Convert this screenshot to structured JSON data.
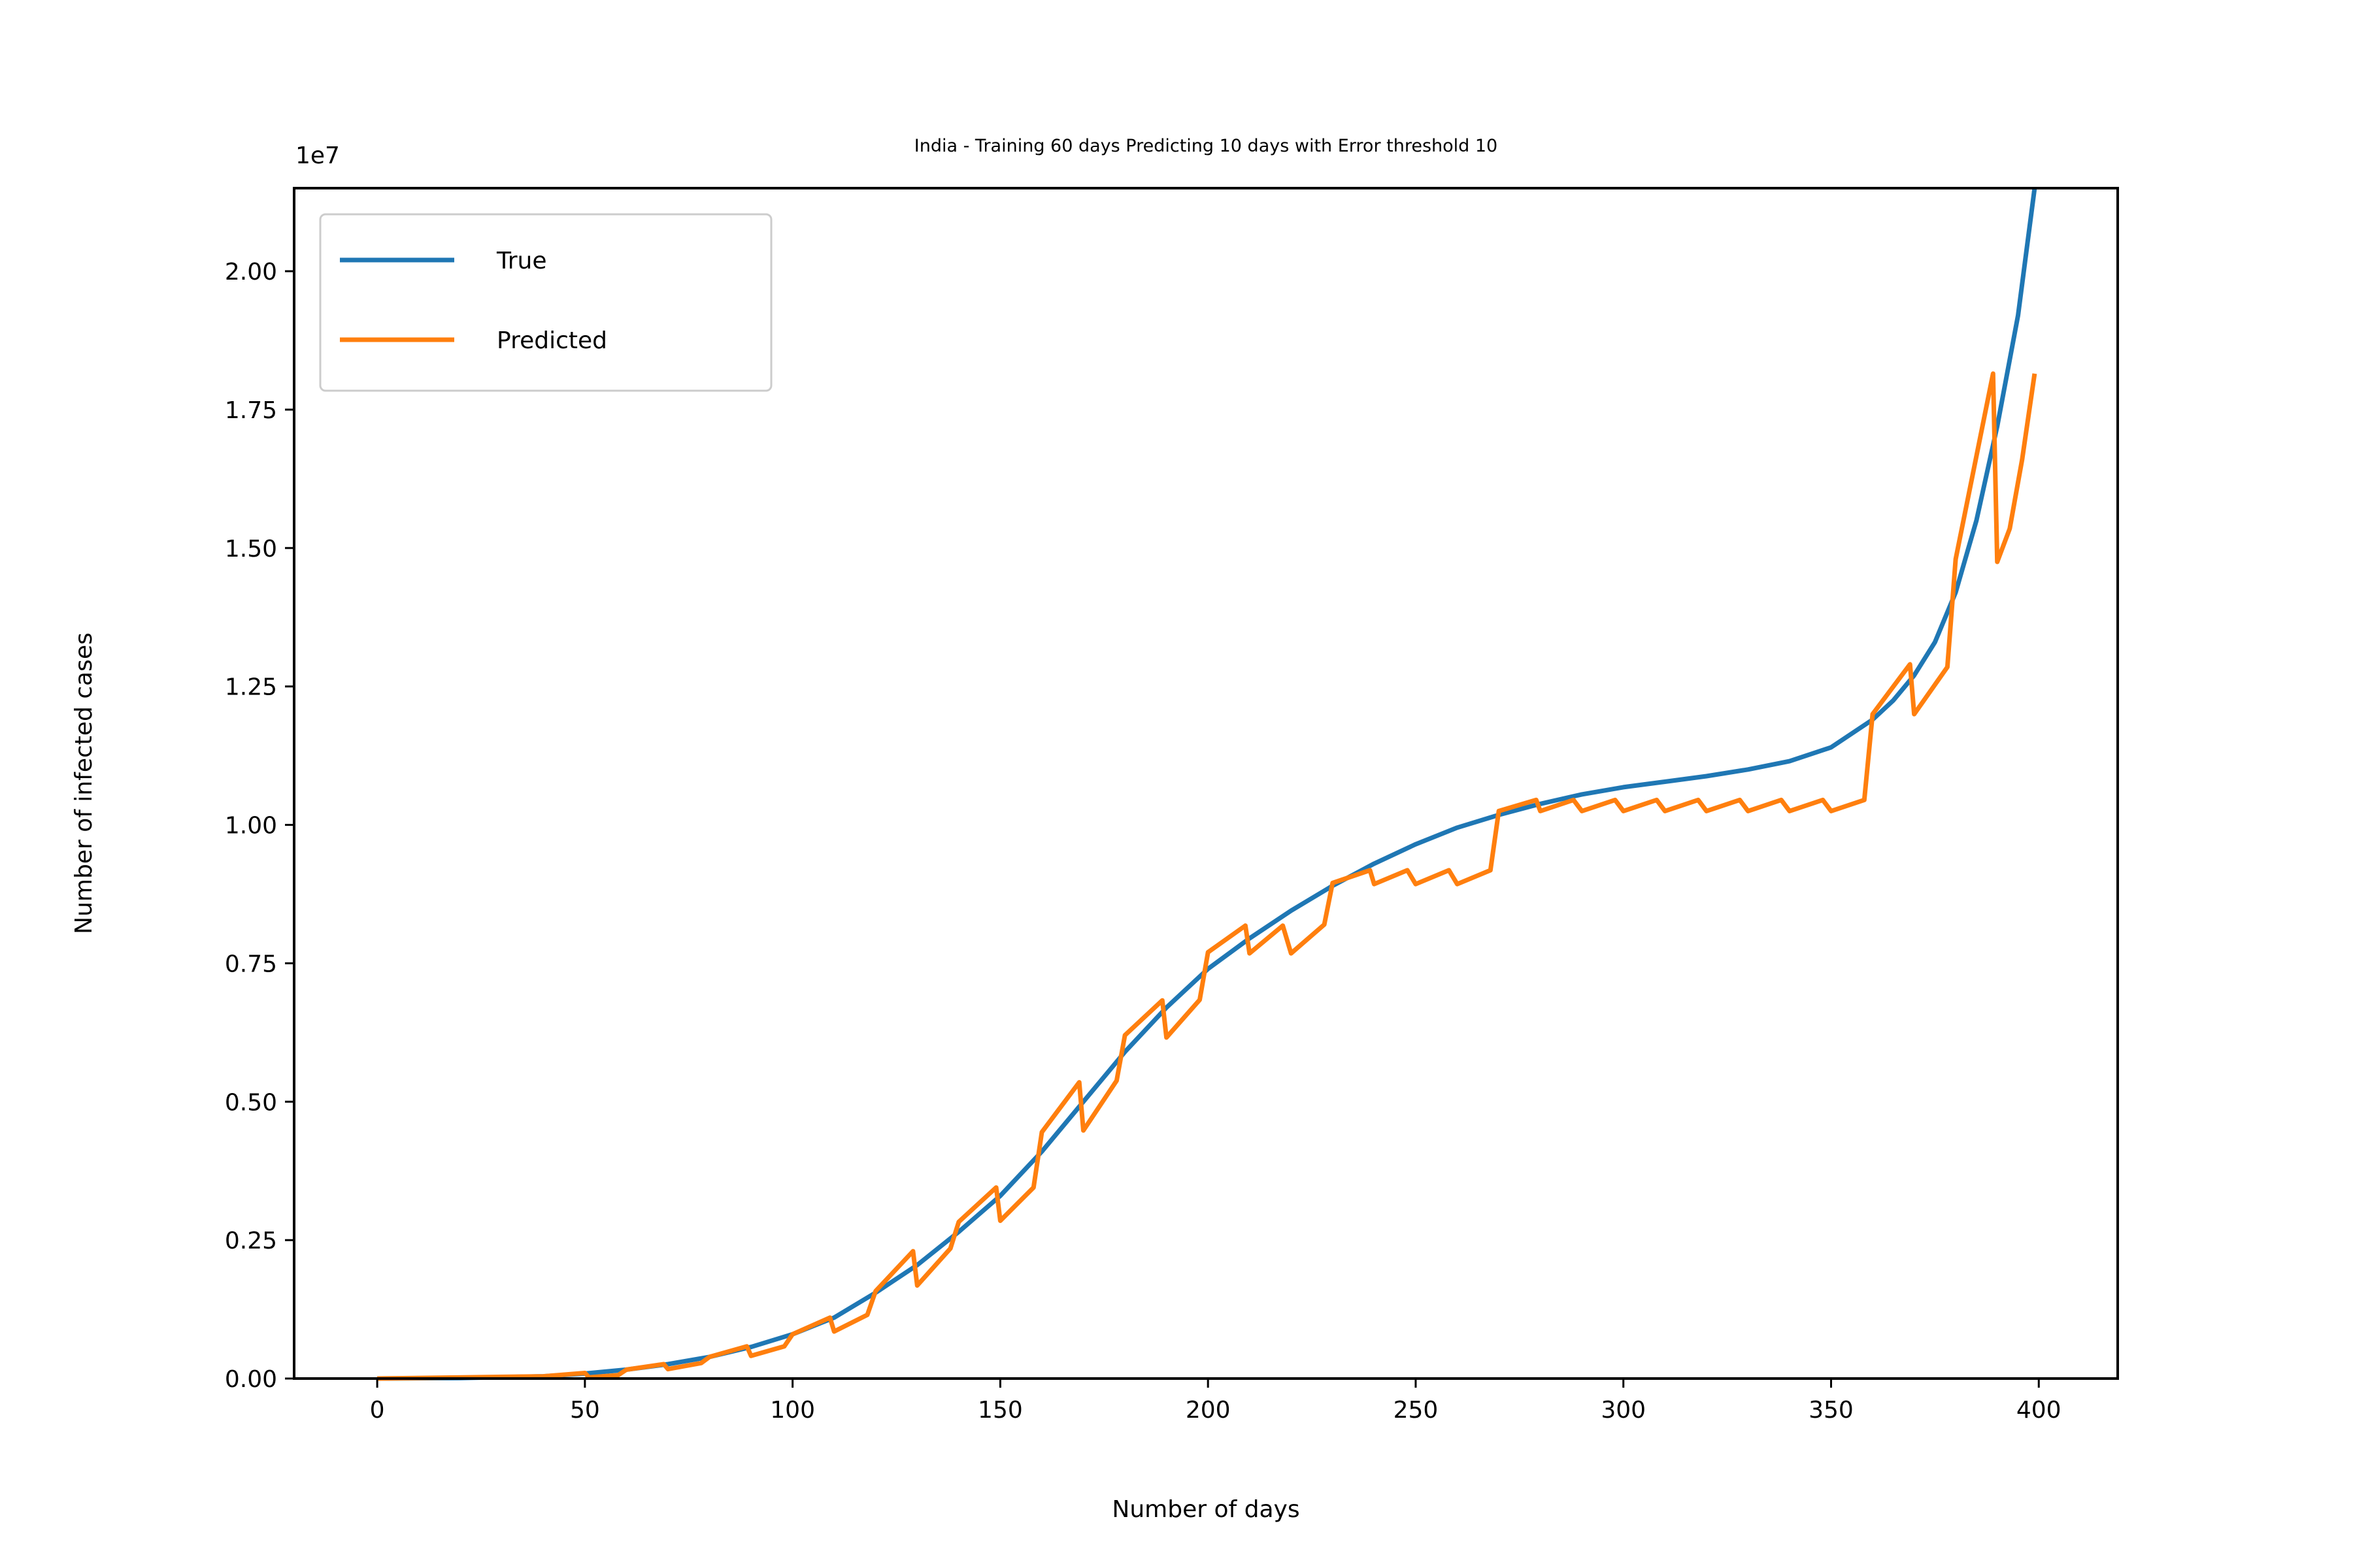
{
  "chart_data": {
    "type": "line",
    "title": "India - Training 60 days Predicting 10 days with Error threshold 10",
    "xlabel": "Number of days",
    "ylabel": "Number of infected cases",
    "y_offset_label": "1e7",
    "xlim": [
      -20,
      419
    ],
    "ylim": [
      0,
      2.15
    ],
    "x_ticks": [
      0,
      50,
      100,
      150,
      200,
      250,
      300,
      350,
      400
    ],
    "y_ticks": [
      0.0,
      0.25,
      0.5,
      0.75,
      1.0,
      1.25,
      1.5,
      1.75,
      2.0
    ],
    "x_tick_labels": [
      "0",
      "50",
      "100",
      "150",
      "200",
      "250",
      "300",
      "350",
      "400"
    ],
    "y_tick_labels": [
      "0.00",
      "0.25",
      "0.50",
      "0.75",
      "1.00",
      "1.25",
      "1.50",
      "1.75",
      "2.00"
    ],
    "grid": false,
    "legend_position": "top-left",
    "series": [
      {
        "name": "True",
        "color": "#1f77b4",
        "points": [
          [
            0,
            0.0
          ],
          [
            20,
            0.001
          ],
          [
            40,
            0.004
          ],
          [
            50,
            0.009
          ],
          [
            60,
            0.016
          ],
          [
            70,
            0.026
          ],
          [
            80,
            0.039
          ],
          [
            90,
            0.057
          ],
          [
            100,
            0.08
          ],
          [
            110,
            0.11
          ],
          [
            120,
            0.155
          ],
          [
            130,
            0.205
          ],
          [
            140,
            0.265
          ],
          [
            150,
            0.33
          ],
          [
            160,
            0.41
          ],
          [
            170,
            0.5
          ],
          [
            180,
            0.59
          ],
          [
            190,
            0.67
          ],
          [
            200,
            0.74
          ],
          [
            210,
            0.795
          ],
          [
            220,
            0.845
          ],
          [
            230,
            0.89
          ],
          [
            240,
            0.93
          ],
          [
            250,
            0.965
          ],
          [
            260,
            0.995
          ],
          [
            270,
            1.018
          ],
          [
            280,
            1.038
          ],
          [
            290,
            1.055
          ],
          [
            300,
            1.068
          ],
          [
            310,
            1.078
          ],
          [
            320,
            1.088
          ],
          [
            330,
            1.1
          ],
          [
            340,
            1.115
          ],
          [
            350,
            1.14
          ],
          [
            360,
            1.19
          ],
          [
            365,
            1.225
          ],
          [
            370,
            1.27
          ],
          [
            375,
            1.33
          ],
          [
            380,
            1.42
          ],
          [
            385,
            1.55
          ],
          [
            390,
            1.72
          ],
          [
            395,
            1.92
          ],
          [
            399,
            2.15
          ]
        ]
      },
      {
        "name": "Predicted",
        "color": "#ff7f0e",
        "points": [
          [
            0,
            0.0
          ],
          [
            40,
            0.004
          ],
          [
            50,
            0.01
          ],
          [
            51,
            0.002
          ],
          [
            58,
            0.006
          ],
          [
            60,
            0.016
          ],
          [
            69,
            0.026
          ],
          [
            70,
            0.017
          ],
          [
            78,
            0.028
          ],
          [
            80,
            0.039
          ],
          [
            89,
            0.058
          ],
          [
            90,
            0.041
          ],
          [
            98,
            0.058
          ],
          [
            100,
            0.08
          ],
          [
            109,
            0.11
          ],
          [
            110,
            0.085
          ],
          [
            118,
            0.115
          ],
          [
            120,
            0.158
          ],
          [
            129,
            0.23
          ],
          [
            130,
            0.168
          ],
          [
            138,
            0.235
          ],
          [
            140,
            0.283
          ],
          [
            149,
            0.345
          ],
          [
            150,
            0.285
          ],
          [
            158,
            0.345
          ],
          [
            160,
            0.445
          ],
          [
            169,
            0.535
          ],
          [
            170,
            0.448
          ],
          [
            178,
            0.538
          ],
          [
            180,
            0.62
          ],
          [
            189,
            0.683
          ],
          [
            190,
            0.616
          ],
          [
            198,
            0.684
          ],
          [
            200,
            0.77
          ],
          [
            209,
            0.818
          ],
          [
            210,
            0.768
          ],
          [
            218,
            0.818
          ],
          [
            220,
            0.768
          ],
          [
            228,
            0.82
          ],
          [
            230,
            0.895
          ],
          [
            239,
            0.918
          ],
          [
            240,
            0.893
          ],
          [
            248,
            0.918
          ],
          [
            250,
            0.893
          ],
          [
            258,
            0.918
          ],
          [
            260,
            0.893
          ],
          [
            268,
            0.918
          ],
          [
            270,
            1.025
          ],
          [
            279,
            1.045
          ],
          [
            280,
            1.025
          ],
          [
            288,
            1.045
          ],
          [
            290,
            1.025
          ],
          [
            298,
            1.045
          ],
          [
            300,
            1.025
          ],
          [
            308,
            1.045
          ],
          [
            310,
            1.025
          ],
          [
            318,
            1.045
          ],
          [
            320,
            1.025
          ],
          [
            328,
            1.045
          ],
          [
            330,
            1.025
          ],
          [
            338,
            1.045
          ],
          [
            340,
            1.025
          ],
          [
            348,
            1.045
          ],
          [
            350,
            1.025
          ],
          [
            358,
            1.045
          ],
          [
            360,
            1.2
          ],
          [
            369,
            1.29
          ],
          [
            370,
            1.2
          ],
          [
            378,
            1.285
          ],
          [
            380,
            1.48
          ],
          [
            389,
            1.815
          ],
          [
            390,
            1.475
          ],
          [
            393,
            1.535
          ],
          [
            396,
            1.66
          ],
          [
            399,
            1.815
          ]
        ]
      }
    ]
  }
}
